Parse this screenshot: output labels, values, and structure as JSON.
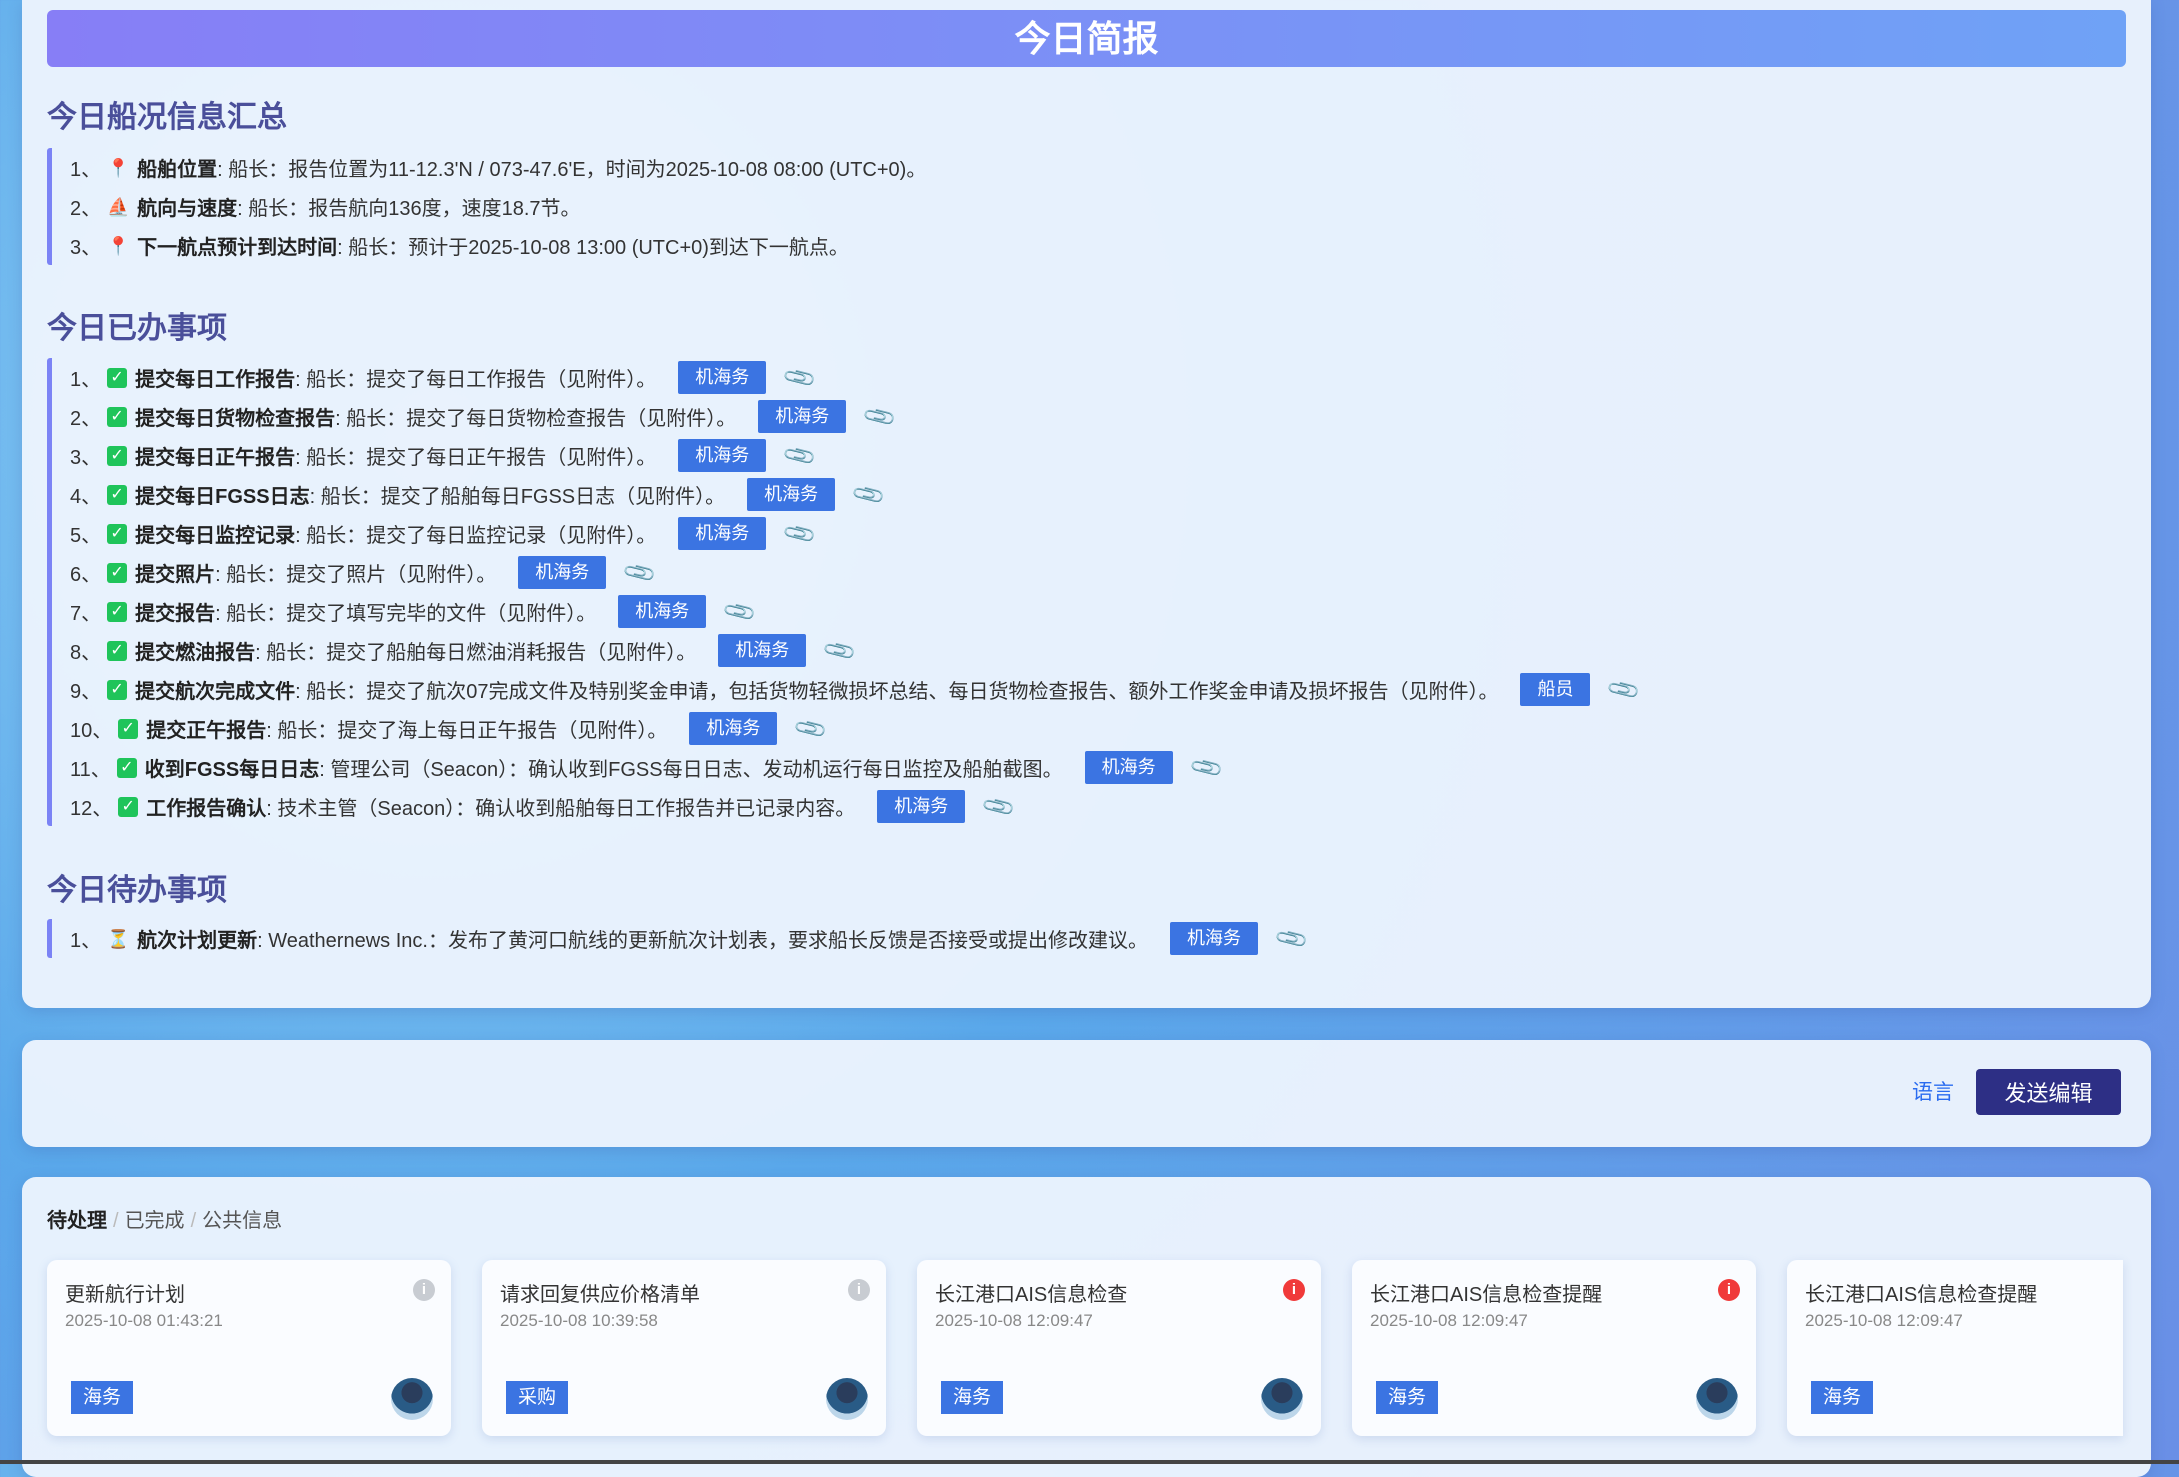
{
  "banner": "今日简报",
  "sections": {
    "status": {
      "title": "今日船况信息汇总",
      "items": [
        {
          "num": "1、",
          "icon": "pin",
          "label": "船舶位置",
          "text": ": 船长：报告位置为11-12.3'N / 073-47.6'E，时间为2025-10-08 08:00 (UTC+0)。"
        },
        {
          "num": "2、",
          "icon": "sailboat",
          "label": "航向与速度",
          "text": ": 船长：报告航向136度，速度18.7节。"
        },
        {
          "num": "3、",
          "icon": "pin",
          "label": "下一航点预计到达时间",
          "text": ": 船长：预计于2025-10-08 13:00 (UTC+0)到达下一航点。"
        }
      ]
    },
    "done": {
      "title": "今日已办事项",
      "items": [
        {
          "num": "1、",
          "icon": "check",
          "label": "提交每日工作报告",
          "text": ": 船长：提交了每日工作报告（见附件）。",
          "tag": "机海务"
        },
        {
          "num": "2、",
          "icon": "check",
          "label": "提交每日货物检查报告",
          "text": ": 船长：提交了每日货物检查报告（见附件）。",
          "tag": "机海务"
        },
        {
          "num": "3、",
          "icon": "check",
          "label": "提交每日正午报告",
          "text": ": 船长：提交了每日正午报告（见附件）。",
          "tag": "机海务"
        },
        {
          "num": "4、",
          "icon": "check",
          "label": "提交每日FGSS日志",
          "text": ": 船长：提交了船舶每日FGSS日志（见附件）。",
          "tag": "机海务"
        },
        {
          "num": "5、",
          "icon": "check",
          "label": "提交每日监控记录",
          "text": ": 船长：提交了每日监控记录（见附件）。",
          "tag": "机海务"
        },
        {
          "num": "6、",
          "icon": "check",
          "label": "提交照片",
          "text": ": 船长：提交了照片（见附件）。",
          "tag": "机海务"
        },
        {
          "num": "7、",
          "icon": "check",
          "label": "提交报告",
          "text": ": 船长：提交了填写完毕的文件（见附件）。",
          "tag": "机海务"
        },
        {
          "num": "8、",
          "icon": "check",
          "label": "提交燃油报告",
          "text": ": 船长：提交了船舶每日燃油消耗报告（见附件）。",
          "tag": "机海务"
        },
        {
          "num": "9、",
          "icon": "check",
          "label": "提交航次完成文件",
          "text": ": 船长：提交了航次07完成文件及特别奖金申请，包括货物轻微损坏总结、每日货物检查报告、额外工作奖金申请及损坏报告（见附件）。",
          "tag": "船员"
        },
        {
          "num": "10、",
          "icon": "check",
          "label": "提交正午报告",
          "text": ": 船长：提交了海上每日正午报告（见附件）。",
          "tag": "机海务"
        },
        {
          "num": "11、",
          "icon": "check",
          "label": "收到FGSS每日日志",
          "text": ": 管理公司（Seacon）：确认收到FGSS每日日志、发动机运行每日监控及船舶截图。",
          "tag": "机海务"
        },
        {
          "num": "12、",
          "icon": "check",
          "label": "工作报告确认",
          "text": ": 技术主管（Seacon）：确认收到船舶每日工作报告并已记录内容。",
          "tag": "机海务"
        }
      ]
    },
    "todo": {
      "title": "今日待办事项",
      "items": [
        {
          "num": "1、",
          "icon": "hourglass",
          "label": "航次计划更新",
          "text": ": Weathernews Inc.：发布了黄河口航线的更新航次计划表，要求船长反馈是否接受或提出修改建议。",
          "tag": "机海务"
        }
      ]
    }
  },
  "actions": {
    "language": "语言",
    "send": "发送编辑"
  },
  "tabs": [
    {
      "label": "待处理",
      "active": true
    },
    {
      "label": "已完成"
    },
    {
      "label": "公共信息"
    }
  ],
  "tab_sep": "/",
  "cards": [
    {
      "title": "更新航行计划",
      "time": "2025-10-08 01:43:21",
      "tag": "海务",
      "alert": "gray",
      "avatar": true
    },
    {
      "title": "请求回复供应价格清单",
      "time": "2025-10-08 10:39:58",
      "tag": "采购",
      "alert": "gray",
      "avatar": true
    },
    {
      "title": "长江港口AIS信息检查",
      "time": "2025-10-08 12:09:47",
      "tag": "海务",
      "alert": "red",
      "avatar": true
    },
    {
      "title": "长江港口AIS信息检查提醒",
      "time": "2025-10-08 12:09:47",
      "tag": "海务",
      "alert": "red",
      "avatar": true
    },
    {
      "title": "长江港口AIS信息检查提醒",
      "time": "2025-10-08 12:09:47",
      "tag": "海务",
      "alert": "none",
      "avatar": false
    }
  ],
  "colors": {
    "accent": "#3b74e2",
    "heading": "#4a4f9a",
    "send_button": "#2d2f85",
    "alert_red": "#f03a3a",
    "alert_gray": "#c8ccd2"
  }
}
